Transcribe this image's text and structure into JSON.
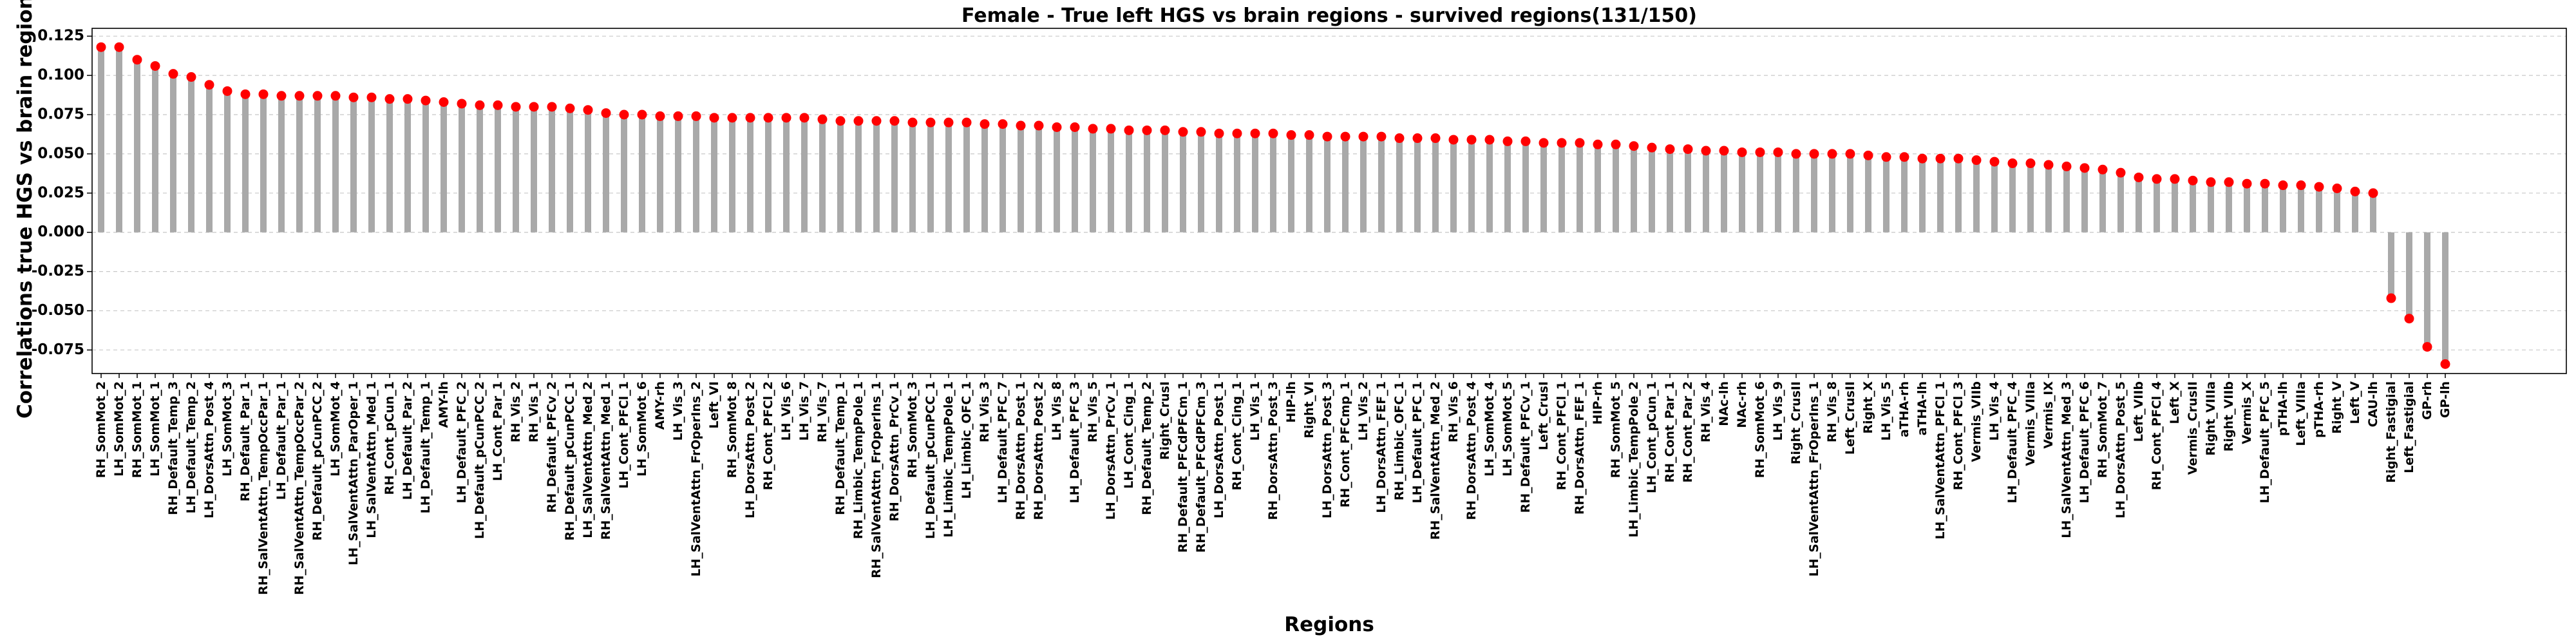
{
  "chart_data": {
    "type": "lollipop",
    "title": "Female - True left HGS vs brain regions - survived regions(131/150)",
    "xlabel": "Regions",
    "ylabel": "Correlations true HGS vs brain regions",
    "ylim": [
      -0.09,
      0.13
    ],
    "yticks": [
      "-0.075",
      "-0.050",
      "-0.025",
      "0.000",
      "0.025",
      "0.050",
      "0.075",
      "0.100",
      "0.125"
    ],
    "grid": "y-dashed",
    "colors": {
      "stem": "#a9a9a9",
      "marker": "#ff0000",
      "frame": "#000000",
      "grid": "#c8c8c8"
    },
    "categories": [
      "RH_SomMot_2",
      "LH_SomMot_2",
      "RH_SomMot_1",
      "LH_SomMot_1",
      "RH_Default_Temp_3",
      "LH_Default_Temp_2",
      "LH_DorsAttn_Post_4",
      "LH_SomMot_3",
      "RH_Default_Par_1",
      "RH_SalVentAttn_TempOccPar_1",
      "LH_Default_Par_1",
      "RH_SalVentAttn_TempOccPar_2",
      "RH_Default_pCunPCC_2",
      "LH_SomMot_4",
      "LH_SalVentAttn_ParOper_1",
      "LH_SalVentAttn_Med_1",
      "RH_Cont_pCun_1",
      "LH_Default_Par_2",
      "LH_Default_Temp_1",
      "AMY-lh",
      "LH_Default_PFC_2",
      "LH_Default_pCunPCC_2",
      "LH_Cont_Par_1",
      "RH_Vis_2",
      "RH_Vis_1",
      "RH_Default_PFCv_2",
      "RH_Default_pCunPCC_1",
      "LH_SalVentAttn_Med_2",
      "RH_SalVentAttn_Med_1",
      "LH_Cont_PFCl_1",
      "LH_SomMot_6",
      "AMY-rh",
      "LH_Vis_3",
      "LH_SalVentAttn_FrOperIns_2",
      "Left_VI",
      "RH_SomMot_8",
      "LH_DorsAttn_Post_2",
      "RH_Cont_PFCl_2",
      "LH_Vis_6",
      "LH_Vis_7",
      "RH_Vis_7",
      "RH_Default_Temp_1",
      "RH_Limbic_TempPole_1",
      "RH_SalVentAttn_FrOperIns_1",
      "RH_DorsAttn_PrCv_1",
      "RH_SomMot_3",
      "LH_Default_pCunPCC_1",
      "LH_Limbic_TempPole_1",
      "LH_Limbic_OFC_1",
      "RH_Vis_3",
      "LH_Default_PFC_7",
      "RH_DorsAttn_Post_1",
      "RH_DorsAttn_Post_2",
      "LH_Vis_8",
      "LH_Default_PFC_3",
      "RH_Vis_5",
      "LH_DorsAttn_PrCv_1",
      "LH_Cont_Cing_1",
      "RH_Default_Temp_2",
      "Right_CrusI",
      "RH_Default_PFCdPFCm_1",
      "RH_Default_PFCdPFCm_3",
      "LH_DorsAttn_Post_1",
      "RH_Cont_Cing_1",
      "LH_Vis_1",
      "RH_DorsAttn_Post_3",
      "HIP-lh",
      "Right_VI",
      "LH_DorsAttn_Post_3",
      "RH_Cont_PFCmp_1",
      "LH_Vis_2",
      "LH_DorsAttn_FEF_1",
      "RH_Limbic_OFC_1",
      "LH_Default_PFC_1",
      "RH_SalVentAttn_Med_2",
      "RH_Vis_6",
      "RH_DorsAttn_Post_4",
      "LH_SomMot_4",
      "LH_SomMot_5",
      "RH_Default_PFCv_1",
      "Left_CrusI",
      "RH_Cont_PFCl_1",
      "RH_DorsAttn_FEF_1",
      "HIP-rh",
      "RH_SomMot_5",
      "LH_Limbic_TempPole_2",
      "LH_Cont_pCun_1",
      "RH_Cont_Par_1",
      "RH_Cont_Par_2",
      "RH_Vis_4",
      "NAc-lh",
      "NAc-rh",
      "RH_SomMot_6",
      "LH_Vis_9",
      "Right_CrusII",
      "LH_SalVentAttn_FrOperIns_1",
      "RH_Vis_8",
      "Left_CrusII",
      "Right_X",
      "LH_Vis_5",
      "aTHA-rh",
      "aTHA-lh",
      "LH_SalVentAttn_PFCl_1",
      "RH_Cont_PFCl_3",
      "Vermis_VIIb",
      "LH_Vis_4",
      "LH_Default_PFC_4",
      "Vermis_VIIIa",
      "Vermis_IX",
      "LH_SalVentAttn_Med_3",
      "LH_Default_PFC_6",
      "RH_SomMot_7",
      "LH_DorsAttn_Post_5",
      "Left_VIIb",
      "RH_Cont_PFCl_4",
      "Left_X",
      "Vermis_CrusII",
      "Right_VIIIa",
      "Right_VIIb",
      "Vermis_X",
      "LH_Default_PFC_5",
      "pTHA-lh",
      "Left_VIIIa",
      "pTHA-rh",
      "Right_V",
      "Left_V",
      "CAU-lh",
      "Right_Fastigial",
      "Left_Fastigial",
      "GP-rh",
      "GP-lh"
    ],
    "values": [
      0.118,
      0.118,
      0.11,
      0.106,
      0.101,
      0.099,
      0.094,
      0.09,
      0.088,
      0.088,
      0.087,
      0.087,
      0.087,
      0.087,
      0.086,
      0.086,
      0.085,
      0.085,
      0.084,
      0.083,
      0.082,
      0.081,
      0.081,
      0.08,
      0.08,
      0.08,
      0.079,
      0.078,
      0.076,
      0.075,
      0.075,
      0.074,
      0.074,
      0.074,
      0.073,
      0.073,
      0.073,
      0.073,
      0.073,
      0.073,
      0.072,
      0.071,
      0.071,
      0.071,
      0.071,
      0.07,
      0.07,
      0.07,
      0.07,
      0.069,
      0.069,
      0.068,
      0.068,
      0.067,
      0.067,
      0.066,
      0.066,
      0.065,
      0.065,
      0.065,
      0.064,
      0.064,
      0.063,
      0.063,
      0.063,
      0.063,
      0.062,
      0.062,
      0.061,
      0.061,
      0.061,
      0.061,
      0.06,
      0.06,
      0.06,
      0.059,
      0.059,
      0.059,
      0.058,
      0.058,
      0.057,
      0.057,
      0.057,
      0.056,
      0.056,
      0.055,
      0.054,
      0.053,
      0.053,
      0.052,
      0.052,
      0.051,
      0.051,
      0.051,
      0.05,
      0.05,
      0.05,
      0.05,
      0.049,
      0.048,
      0.048,
      0.047,
      0.047,
      0.047,
      0.046,
      0.045,
      0.044,
      0.044,
      0.043,
      0.042,
      0.041,
      0.04,
      0.038,
      0.035,
      0.034,
      0.034,
      0.033,
      0.032,
      0.032,
      0.031,
      0.031,
      0.03,
      0.03,
      0.029,
      0.028,
      0.026,
      0.025,
      -0.042,
      -0.055,
      -0.073,
      -0.084
    ]
  }
}
